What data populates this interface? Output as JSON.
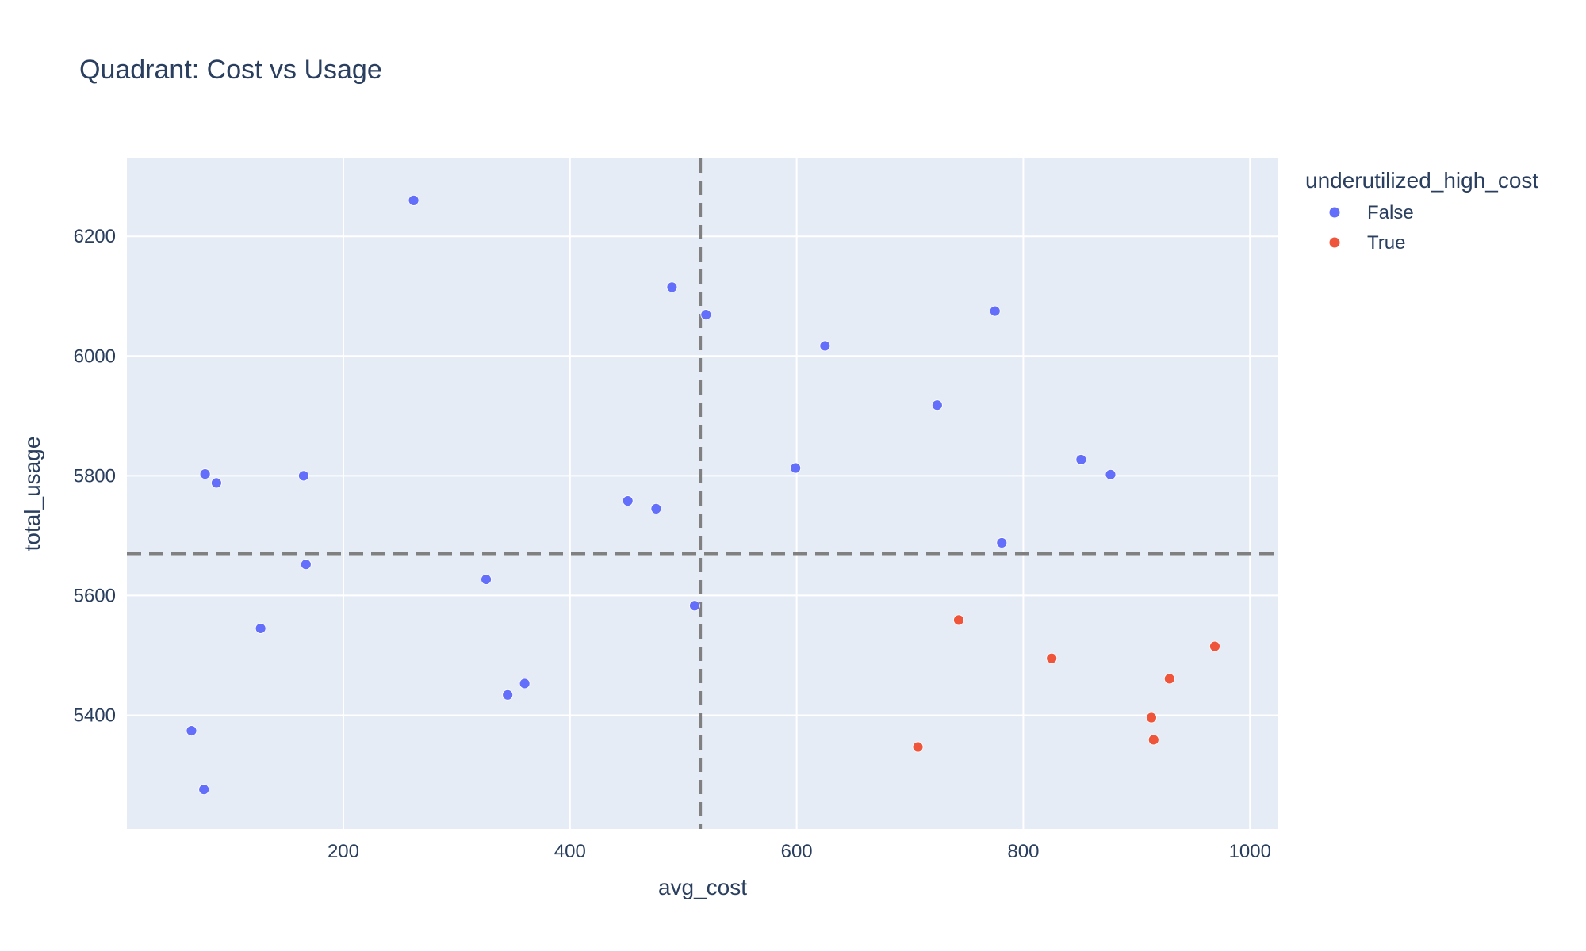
{
  "chart_data": {
    "type": "scatter",
    "title": "Quadrant: Cost vs Usage",
    "xlabel": "avg_cost",
    "ylabel": "total_usage",
    "xlim": [
      9,
      1025
    ],
    "ylim": [
      5210,
      6330
    ],
    "xticks": [
      200,
      400,
      600,
      800,
      1000
    ],
    "yticks": [
      5400,
      5600,
      5800,
      6000,
      6200
    ],
    "grid": true,
    "legend": {
      "title": "underutilized_high_cost",
      "placement": "top-right"
    },
    "reference_lines": {
      "x": 515,
      "y": 5670,
      "style": "dashed",
      "color": "#808080"
    },
    "colors": {
      "plot_bg": "#E5ECF6",
      "grid": "#ffffff",
      "text": "#2a3f5f"
    },
    "series": [
      {
        "name": "False",
        "color": "#636EFA",
        "points": [
          [
            262,
            6260
          ],
          [
            490,
            6115
          ],
          [
            520,
            6069
          ],
          [
            625,
            6017
          ],
          [
            775,
            6075
          ],
          [
            724,
            5918
          ],
          [
            599,
            5813
          ],
          [
            851,
            5827
          ],
          [
            877,
            5802
          ],
          [
            781,
            5688
          ],
          [
            78,
            5803
          ],
          [
            88,
            5788
          ],
          [
            165,
            5800
          ],
          [
            167,
            5652
          ],
          [
            451,
            5758
          ],
          [
            476,
            5745
          ],
          [
            326,
            5627
          ],
          [
            510,
            5583
          ],
          [
            127,
            5545
          ],
          [
            345,
            5434
          ],
          [
            360,
            5453
          ],
          [
            66,
            5374
          ],
          [
            77,
            5276
          ]
        ]
      },
      {
        "name": "True",
        "color": "#EF553B",
        "points": [
          [
            743,
            5559
          ],
          [
            825,
            5495
          ],
          [
            969,
            5515
          ],
          [
            929,
            5461
          ],
          [
            913,
            5396
          ],
          [
            915,
            5359
          ],
          [
            707,
            5347
          ]
        ]
      }
    ]
  }
}
